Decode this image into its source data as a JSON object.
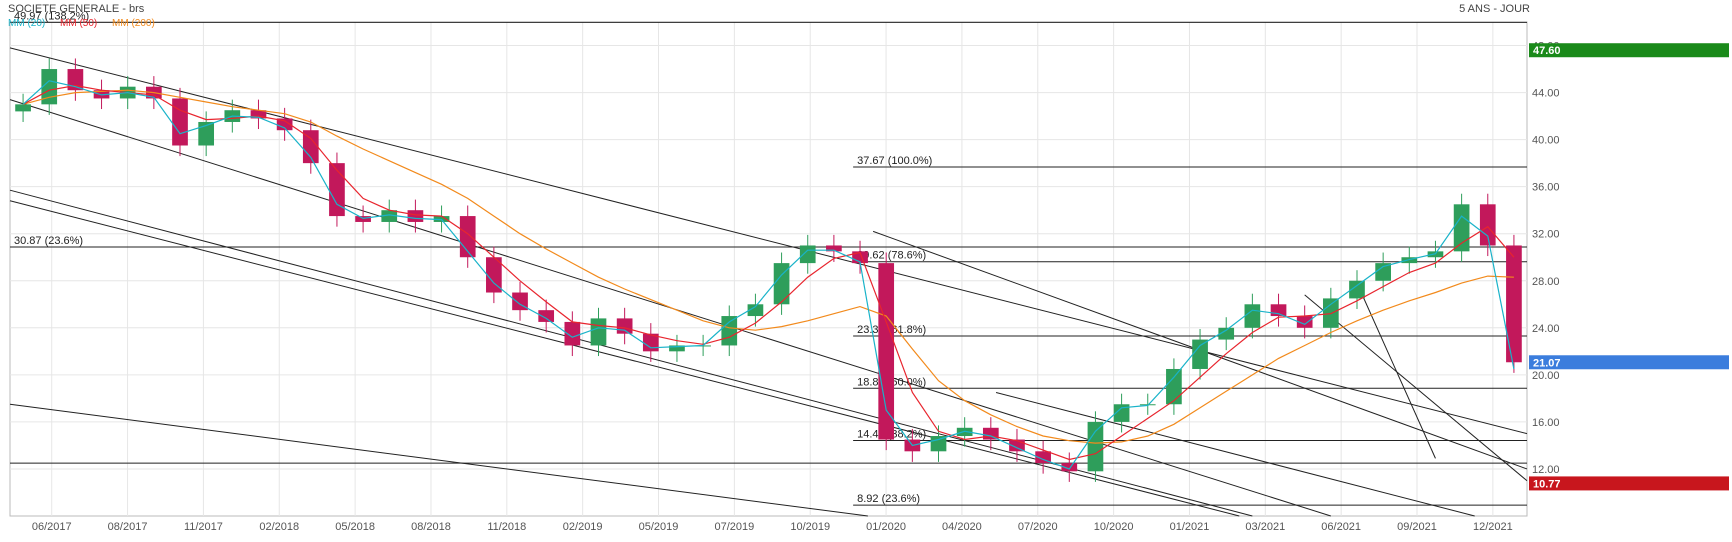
{
  "chart_data": {
    "type": "candlestick",
    "title": "SOCIETE GENERALE - brs",
    "period_label": "5 ANS - JOUR",
    "legend": [
      {
        "label": "MM (20)",
        "color": "#19b3c9"
      },
      {
        "label": "MM (50)",
        "color": "#e8252e"
      },
      {
        "label": "MM (200)",
        "color": "#f28a1c"
      }
    ],
    "x_tick_labels": [
      "06/2017",
      "08/2017",
      "11/2017",
      "02/2018",
      "05/2018",
      "08/2018",
      "11/2018",
      "02/2019",
      "05/2019",
      "07/2019",
      "10/2019",
      "01/2020",
      "04/2020",
      "07/2020",
      "10/2020",
      "01/2021",
      "03/2021",
      "06/2021",
      "09/2021",
      "12/2021"
    ],
    "y_tick_labels": [
      "48.00",
      "44.00",
      "40.00",
      "36.00",
      "32.00",
      "28.00",
      "24.00",
      "20.00",
      "16.00",
      "12.00"
    ],
    "y_ticks": [
      48,
      44,
      40,
      36,
      32,
      28,
      24,
      20,
      16,
      12
    ],
    "ylim": [
      8.0,
      50.0
    ],
    "price_series": [
      [
        "06/2017",
        43.0
      ],
      [
        "07/2017",
        46.0
      ],
      [
        "08/2017",
        44.2
      ],
      [
        "09/2017",
        43.5
      ],
      [
        "10/2017",
        44.5
      ],
      [
        "11/2017",
        43.5
      ],
      [
        "12/2017",
        39.5
      ],
      [
        "01/2018",
        41.5
      ],
      [
        "02/2018",
        42.5
      ],
      [
        "03/2018",
        41.8
      ],
      [
        "04/2018",
        40.8
      ],
      [
        "05/2018",
        38.0
      ],
      [
        "06/2018",
        33.5
      ],
      [
        "07/2018",
        33.0
      ],
      [
        "08/2018",
        34.0
      ],
      [
        "09/2018",
        33.0
      ],
      [
        "10/2018",
        33.5
      ],
      [
        "11/2018",
        30.0
      ],
      [
        "12/2018",
        27.0
      ],
      [
        "01/2019",
        25.5
      ],
      [
        "02/2019",
        24.5
      ],
      [
        "03/2019",
        22.5
      ],
      [
        "04/2019",
        24.8
      ],
      [
        "05/2019",
        23.5
      ],
      [
        "06/2019",
        22.0
      ],
      [
        "07/2019",
        22.5
      ],
      [
        "08/2019",
        22.5
      ],
      [
        "09/2019",
        25.0
      ],
      [
        "10/2019",
        26.0
      ],
      [
        "11/2019",
        29.5
      ],
      [
        "12/2019",
        31.0
      ],
      [
        "01/2020",
        30.5
      ],
      [
        "02/2020",
        29.5
      ],
      [
        "03/2020",
        14.5
      ],
      [
        "04/2020",
        13.5
      ],
      [
        "05/2020",
        14.8
      ],
      [
        "06/2020",
        15.5
      ],
      [
        "07/2020",
        14.5
      ],
      [
        "08/2020",
        13.5
      ],
      [
        "09/2020",
        12.5
      ],
      [
        "10/2020",
        11.8
      ],
      [
        "11/2020",
        16.0
      ],
      [
        "12/2020",
        17.5
      ],
      [
        "01/2021",
        17.5
      ],
      [
        "02/2021",
        20.5
      ],
      [
        "03/2021",
        23.0
      ],
      [
        "04/2021",
        24.0
      ],
      [
        "05/2021",
        26.0
      ],
      [
        "06/2021",
        25.0
      ],
      [
        "07/2021",
        24.0
      ],
      [
        "08/2021",
        26.5
      ],
      [
        "09/2021",
        28.0
      ],
      [
        "10/2021",
        29.5
      ],
      [
        "11/2021",
        30.0
      ],
      [
        "12/2021",
        30.5
      ],
      [
        "01/2022",
        34.5
      ],
      [
        "02/2022",
        31.0
      ],
      [
        "03/2022",
        21.07
      ]
    ],
    "ma20": [
      43,
      45,
      44.5,
      43.8,
      44,
      43.6,
      40.5,
      41.2,
      42,
      41.9,
      41,
      38.5,
      34.5,
      33.3,
      33.6,
      33.3,
      33.2,
      30.5,
      27.8,
      26,
      24.8,
      23.2,
      24,
      23.8,
      22.3,
      22.4,
      22.5,
      24.5,
      25.8,
      28.5,
      30.6,
      30.6,
      29.6,
      17,
      14,
      14.5,
      15.2,
      14.8,
      13.8,
      12.8,
      12,
      15.2,
      17.2,
      17.4,
      19.8,
      22.5,
      23.8,
      25.5,
      25.2,
      24.3,
      26,
      27.6,
      29.2,
      29.8,
      30.3,
      33.5,
      31.8,
      20.5
    ],
    "ma50": [
      43,
      44.2,
      44.6,
      44.2,
      44,
      43.8,
      42.5,
      41.7,
      41.8,
      42,
      41.6,
      40.1,
      37.4,
      35,
      34,
      33.6,
      33.5,
      32,
      30,
      28,
      26.2,
      24.5,
      24.2,
      24,
      23.4,
      22.9,
      22.6,
      23.2,
      24.4,
      26.2,
      28.3,
      29.9,
      30.4,
      24.5,
      18.5,
      15.2,
      14.5,
      14.8,
      14.4,
      13.6,
      12.8,
      13.3,
      14.8,
      16.3,
      17.8,
      19.8,
      21.8,
      23.6,
      24.9,
      25,
      25.2,
      26.3,
      27.5,
      28.7,
      29.5,
      31.2,
      32.6,
      30
    ],
    "ma200": [
      43,
      43.6,
      44,
      44.1,
      44.2,
      44,
      43.6,
      43.2,
      42.8,
      42.5,
      42.2,
      41.5,
      40.3,
      39.2,
      38.2,
      37.2,
      36.2,
      35,
      33.5,
      32,
      30.7,
      29.5,
      28.3,
      27.3,
      26.4,
      25.5,
      24.6,
      24,
      23.8,
      24.1,
      24.6,
      25.2,
      25.8,
      25,
      22.2,
      19.5,
      17.8,
      16.6,
      15.6,
      14.8,
      14.4,
      14.2,
      14.3,
      14.8,
      15.8,
      17.2,
      18.6,
      20,
      21.4,
      22.5,
      23.6,
      24.6,
      25.5,
      26.3,
      27,
      27.8,
      28.4,
      28.3
    ],
    "horizontal_levels": [
      {
        "value": 49.97,
        "label": "49.97 (138.2%)"
      },
      {
        "value": 37.67,
        "label": "37.67  (100.0%)"
      },
      {
        "value": 30.87,
        "label": "30.87  (23.6%)"
      },
      {
        "value": 29.62,
        "label": "29.62  (78.6%)"
      },
      {
        "value": 23.3,
        "label": "23.30  (61.8%)"
      },
      {
        "value": 18.86,
        "label": "18.86  (50.0%)"
      },
      {
        "value": 14.42,
        "label": "14.42  (38.2%)"
      },
      {
        "value": 12.5,
        "label": ""
      },
      {
        "value": 8.92,
        "label": "8.92  (23.6%)"
      }
    ],
    "trend_lines": [
      {
        "from": [
          -0.5,
          47.8
        ],
        "to": [
          57.5,
          15.0
        ]
      },
      {
        "from": [
          -0.5,
          43.4
        ],
        "to": [
          50.0,
          8.0
        ]
      },
      {
        "from": [
          -0.5,
          35.7
        ],
        "to": [
          47.0,
          8.0
        ]
      },
      {
        "from": [
          -0.5,
          34.8
        ],
        "to": [
          46.5,
          8.0
        ]
      },
      {
        "from": [
          -0.5,
          17.5
        ],
        "to": [
          32.3,
          8.0
        ]
      },
      {
        "from": [
          32.5,
          32.2
        ],
        "to": [
          57.5,
          12.0
        ]
      },
      {
        "from": [
          37.2,
          18.5
        ],
        "to": [
          55.5,
          8.0
        ]
      },
      {
        "from": [
          49.0,
          26.8
        ],
        "to": [
          57.5,
          11.0
        ]
      },
      {
        "from": [
          51.0,
          27.8
        ],
        "to": [
          54.0,
          12.9
        ]
      }
    ],
    "price_badges": [
      {
        "value": 47.6,
        "label": "47.60",
        "color": "#1a8a1a"
      },
      {
        "value": 21.07,
        "label": "21.07",
        "color": "#3b7ddd"
      },
      {
        "value": 10.77,
        "label": "10.77",
        "color": "#c8161d"
      }
    ],
    "grid": true
  }
}
